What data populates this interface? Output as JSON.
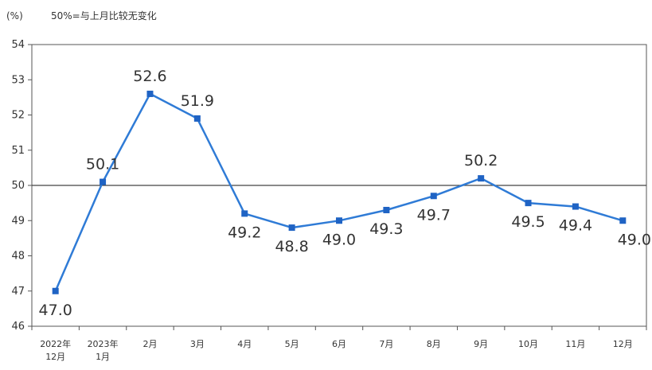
{
  "chart_data": {
    "type": "line",
    "unit_label": "(%)",
    "note": "50%=与上月比较无变化",
    "categories": [
      [
        "2022年",
        "12月"
      ],
      [
        "2023年",
        "1月"
      ],
      [
        "2月"
      ],
      [
        "3月"
      ],
      [
        "4月"
      ],
      [
        "5月"
      ],
      [
        "6月"
      ],
      [
        "7月"
      ],
      [
        "8月"
      ],
      [
        "9月"
      ],
      [
        "10月"
      ],
      [
        "11月"
      ],
      [
        "12月"
      ]
    ],
    "values": [
      47.0,
      50.1,
      52.6,
      51.9,
      49.2,
      48.8,
      49.0,
      49.3,
      49.7,
      50.2,
      49.5,
      49.4,
      49.0
    ],
    "value_labels": [
      "47.0",
      "50.1",
      "52.6",
      "51.9",
      "49.2",
      "48.8",
      "49.0",
      "49.3",
      "49.7",
      "50.2",
      "49.5",
      "49.4",
      "49.0"
    ],
    "label_position": [
      "below",
      "above",
      "above",
      "above",
      "below",
      "below",
      "below",
      "below",
      "below",
      "above",
      "below",
      "below",
      "below"
    ],
    "ylim": [
      46,
      54
    ],
    "yticks": [
      46,
      47,
      48,
      49,
      50,
      51,
      52,
      53,
      54
    ],
    "reference_line": 50,
    "grid": false,
    "colors": {
      "line": "#2f7bd6",
      "marker": "#1f63c4",
      "axis": "#555555",
      "reference": "#444444"
    }
  }
}
